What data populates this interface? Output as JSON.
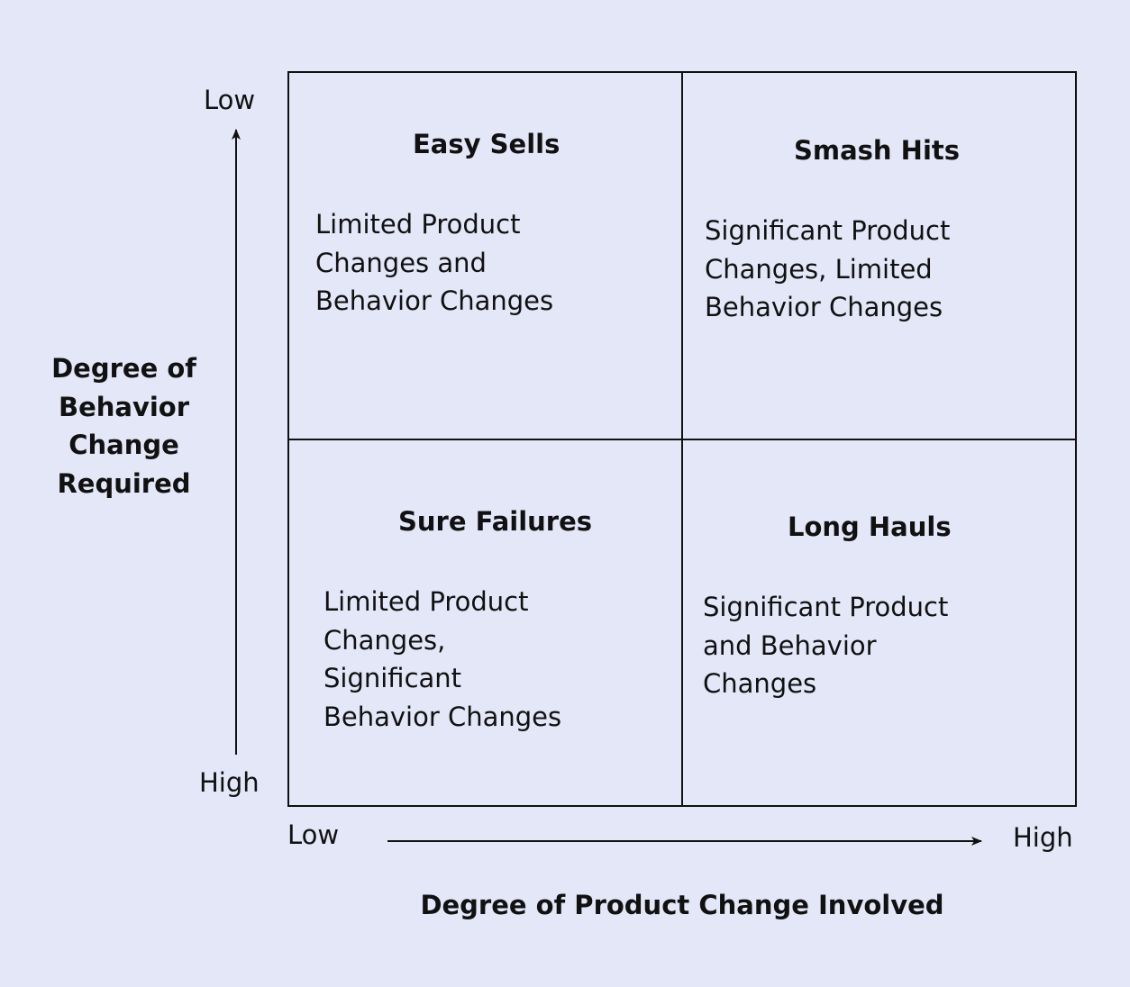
{
  "y_axis": {
    "title": "Degree of\nBehavior\nChange\nRequired",
    "top_label": "Low",
    "bottom_label": "High"
  },
  "x_axis": {
    "title": "Degree of Product Change Involved",
    "left_label": "Low",
    "right_label": "High"
  },
  "quadrants": {
    "top_left": {
      "title": "Easy Sells",
      "body": "Limited Product\nChanges and\nBehavior Changes"
    },
    "top_right": {
      "title": "Smash Hits",
      "body": "Significant Product\nChanges, Limited\nBehavior Changes"
    },
    "bottom_left": {
      "title": "Sure Failures",
      "body": "Limited Product\nChanges,\nSignificant\nBehavior Changes"
    },
    "bottom_right": {
      "title": "Long Hauls",
      "body": "Significant Product\nand Behavior\nChanges"
    }
  }
}
